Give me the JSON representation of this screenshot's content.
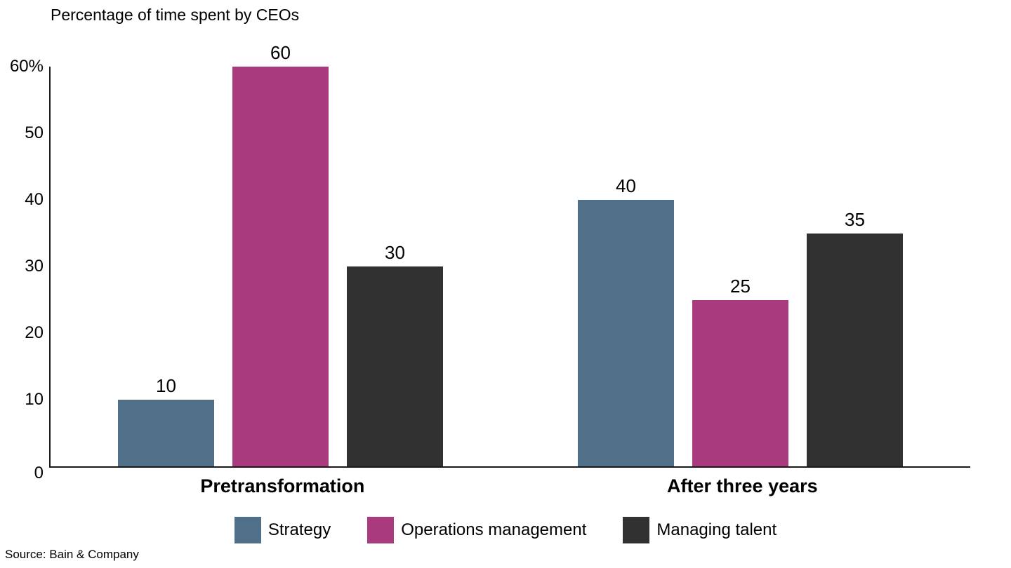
{
  "chart_data": {
    "type": "bar",
    "title": "Percentage of time spent by CEOs",
    "categories": [
      "Pretransformation",
      "After three years"
    ],
    "series": [
      {
        "name": "Strategy",
        "color": "#50708a",
        "values": [
          10,
          40
        ]
      },
      {
        "name": "Operations management",
        "color": "#a83a7d",
        "values": [
          60,
          25
        ]
      },
      {
        "name": "Managing talent",
        "color": "#313131",
        "values": [
          30,
          35
        ]
      }
    ],
    "ylim": [
      0,
      60
    ],
    "yticks": [
      {
        "value": 60,
        "label": "60%"
      },
      {
        "value": 50,
        "label": "50"
      },
      {
        "value": 40,
        "label": "40"
      },
      {
        "value": 30,
        "label": "30"
      },
      {
        "value": 20,
        "label": "20"
      },
      {
        "value": 10,
        "label": "10"
      },
      {
        "value": 0,
        "label": "0"
      }
    ],
    "grid": false,
    "legend_position": "bottom",
    "source": "Source: Bain & Company"
  }
}
